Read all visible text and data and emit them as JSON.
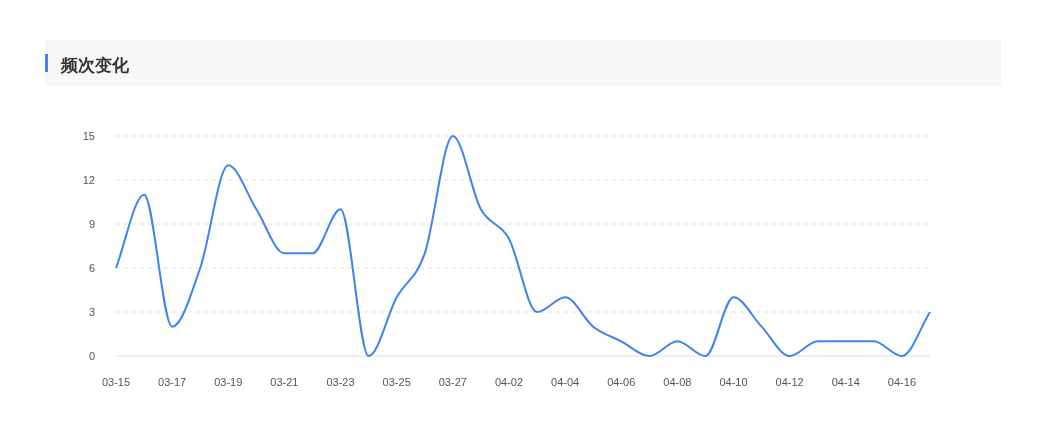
{
  "chart_data": {
    "type": "line",
    "title": "频次变化",
    "categories": [
      "03-15",
      null,
      "03-17",
      null,
      "03-19",
      null,
      "03-21",
      null,
      "03-23",
      null,
      "03-25",
      null,
      "03-27",
      null,
      "04-02",
      null,
      "04-04",
      null,
      "04-06",
      null,
      "04-08",
      null,
      "04-10",
      null,
      "04-12",
      null,
      "04-14",
      null,
      "04-16",
      null
    ],
    "values": [
      6,
      11,
      2,
      6,
      13,
      10,
      7,
      7,
      10,
      0,
      4,
      7,
      15,
      10,
      8,
      3,
      4,
      2,
      1,
      0,
      1,
      0,
      4,
      2,
      0,
      1,
      1,
      1,
      0,
      3
    ],
    "color": "#3d83f2",
    "ylim": [
      0,
      15
    ],
    "yticks": [
      0,
      3,
      6,
      9,
      12,
      15
    ],
    "grid": "y",
    "marker": "none",
    "line_style": "solid"
  }
}
